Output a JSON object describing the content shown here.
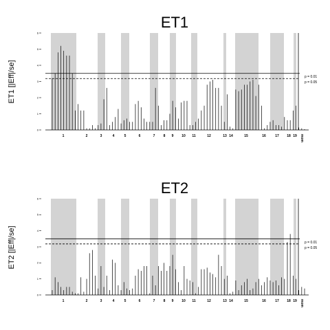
{
  "chart_data": [
    {
      "type": "bar",
      "title": "ET1",
      "ylabel": "ET1 [|Eff|/se]",
      "ylim": [
        0,
        6
      ],
      "yticks": [
        0,
        1,
        2,
        3,
        4,
        5,
        6
      ],
      "threshold_labels": [
        "p = 0.01",
        "p = 0.05"
      ],
      "thresholds": [
        3.5,
        3.18
      ],
      "chromosome_labels": [
        "1",
        "2",
        "3",
        "4",
        "5",
        "6",
        "7",
        "8",
        "9",
        "10",
        "11",
        "12",
        "13",
        "14",
        "15",
        "16",
        "17",
        "18",
        "19",
        "mom"
      ],
      "values": [
        3.2,
        3.5,
        4.8,
        5.2,
        4.9,
        4.6,
        4.6,
        3.5,
        1.2,
        1.6,
        1.2,
        1.2,
        0.1,
        0.1,
        0.3,
        0.1,
        0.3,
        0.4,
        1.9,
        2.6,
        0.3,
        0.5,
        0.8,
        1.3,
        0.4,
        0.6,
        0.7,
        0.5,
        0.5,
        1.6,
        1.8,
        1.4,
        0.7,
        0.5,
        0.5,
        0.5,
        2.6,
        1.5,
        0.3,
        0.6,
        0.6,
        1.0,
        1.8,
        1.4,
        0.7,
        1.7,
        1.8,
        1.8,
        0.3,
        0.3,
        0.5,
        0.7,
        1.2,
        1.5,
        2.8,
        3.0,
        3.1,
        2.6,
        2.6,
        1.5,
        0.5,
        2.2,
        0.2,
        0.1,
        2.5,
        2.4,
        2.5,
        2.8,
        2.8,
        3.0,
        3.1,
        2.1,
        2.8,
        1.5,
        0.1,
        0.3,
        0.5,
        0.6,
        0.3,
        0.3,
        0.2,
        0.8,
        0.6,
        0.6,
        1.2,
        1.5,
        0.15,
        0.1,
        0.05
      ]
    },
    {
      "type": "bar",
      "title": "ET2",
      "ylabel": "ET2 [|Eff|/se]",
      "ylim": [
        0,
        6
      ],
      "yticks": [
        0,
        1,
        2,
        3,
        4,
        5,
        6
      ],
      "threshold_labels": [
        "p = 0.01",
        "p = 0.05"
      ],
      "thresholds": [
        3.5,
        3.18
      ],
      "chromosome_labels": [
        "1",
        "2",
        "3",
        "4",
        "5",
        "6",
        "7",
        "8",
        "9",
        "10",
        "11",
        "12",
        "13",
        "14",
        "15",
        "16",
        "17",
        "18",
        "19",
        "mom"
      ],
      "values": [
        0.3,
        1.1,
        0.8,
        0.5,
        0.3,
        0.5,
        0.5,
        0.2,
        0.1,
        0.1,
        1.1,
        0.2,
        1.0,
        2.6,
        2.8,
        1.2,
        0.4,
        1.8,
        0.5,
        1.2,
        0.3,
        2.2,
        2.0,
        0.6,
        0.3,
        0.8,
        0.4,
        0.3,
        0.4,
        1.2,
        1.6,
        1.5,
        1.8,
        1.8,
        0.1,
        1.2,
        0.6,
        1.8,
        1.5,
        2.0,
        1.5,
        1.8,
        2.5,
        1.6,
        0.8,
        0.3,
        1.8,
        1.0,
        0.9,
        0.8,
        0.1,
        0.5,
        1.6,
        1.6,
        1.7,
        1.4,
        1.3,
        1.1,
        2.5,
        1.8,
        1.0,
        1.2,
        0.1,
        0.2,
        0.9,
        0.3,
        0.6,
        0.8,
        1.0,
        0.3,
        0.4,
        0.8,
        1.0,
        0.6,
        0.8,
        1.1,
        0.9,
        0.8,
        0.9,
        0.6,
        1.1,
        1.0,
        3.3,
        3.8,
        1.2,
        1.0,
        0.3,
        0.5,
        0.4
      ]
    }
  ]
}
